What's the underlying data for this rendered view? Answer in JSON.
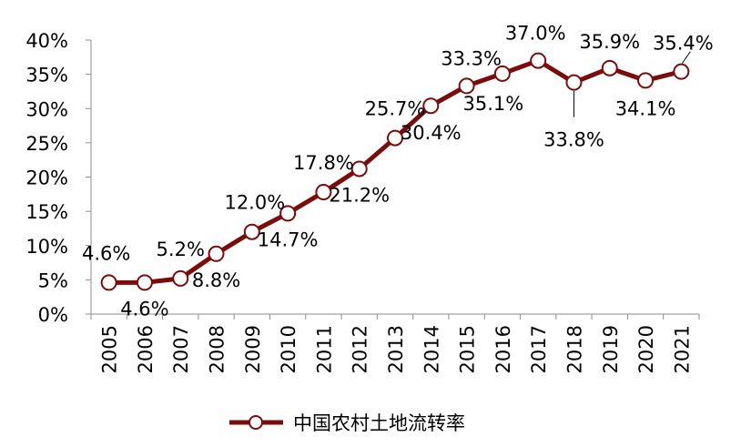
{
  "chart_data": {
    "type": "line",
    "categories": [
      "2005",
      "2006",
      "2007",
      "2008",
      "2009",
      "2010",
      "2011",
      "2012",
      "2013",
      "2014",
      "2015",
      "2016",
      "2017",
      "2018",
      "2019",
      "2020",
      "2021"
    ],
    "series": [
      {
        "name": "中国农村土地流转率",
        "values": [
          4.6,
          4.6,
          5.2,
          8.8,
          12.0,
          14.7,
          17.8,
          21.2,
          25.7,
          30.4,
          33.3,
          35.1,
          37.0,
          33.8,
          35.9,
          34.1,
          35.4
        ],
        "color": "#7b0c0c"
      }
    ],
    "data_labels": [
      "4.6%",
      "4.6%",
      "5.2%",
      "8.8%",
      "12.0%",
      "14.7%",
      "17.8%",
      "21.2%",
      "25.7%",
      "30.4%",
      "33.3%",
      "35.1%",
      "37.0%",
      "33.8%",
      "35.9%",
      "34.1%",
      "35.4%"
    ],
    "ylim": [
      0,
      40
    ],
    "y_ticks": [
      "0%",
      "5%",
      "10%",
      "15%",
      "20%",
      "25%",
      "30%",
      "35%",
      "40%"
    ],
    "legend_position": "bottom",
    "grid": false
  }
}
